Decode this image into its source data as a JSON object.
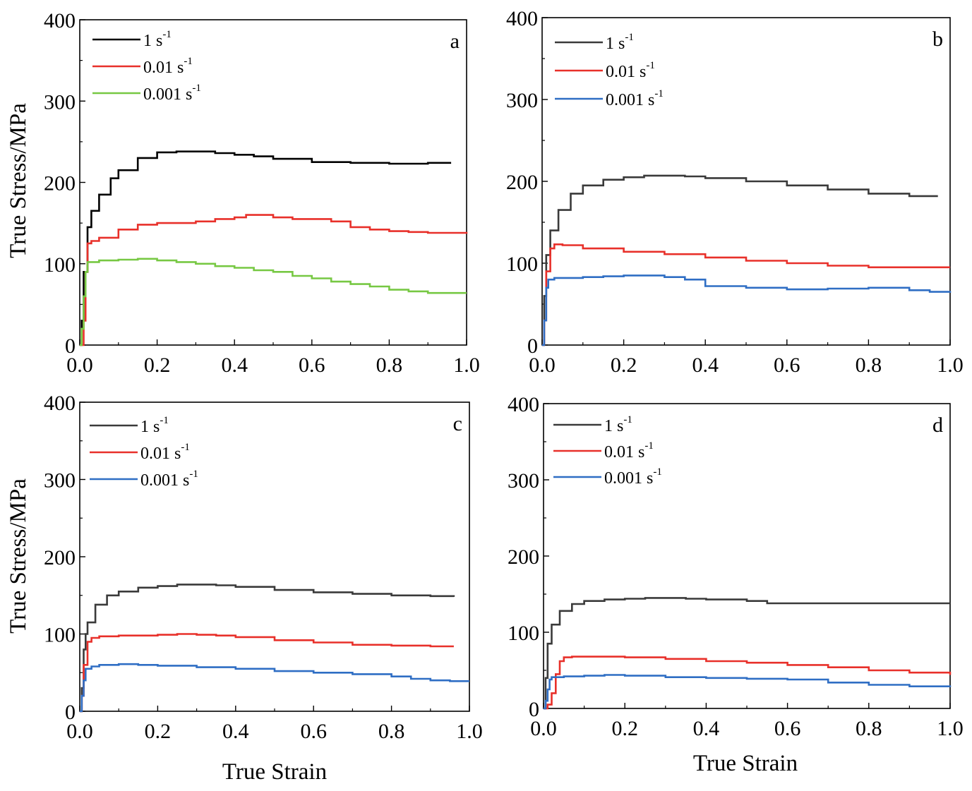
{
  "figure": {
    "ylabel_left": "True Stress/MPa",
    "xlabel_bottom": "True Strain"
  },
  "chart_data": [
    {
      "type": "line",
      "panel": "a",
      "xlabel": "",
      "ylabel": "True Stress/MPa",
      "xlim": [
        0.0,
        1.0
      ],
      "ylim": [
        0,
        400
      ],
      "xticks": [
        "0.0",
        "0.2",
        "0.4",
        "0.6",
        "0.8",
        "1.0"
      ],
      "yticks": [
        "0",
        "100",
        "200",
        "300",
        "400"
      ],
      "legend_position": "top-left",
      "series": [
        {
          "name": "1 s",
          "sup": "-1",
          "color": "#000000",
          "x": [
            0,
            0.005,
            0.01,
            0.02,
            0.03,
            0.05,
            0.08,
            0.1,
            0.15,
            0.2,
            0.25,
            0.3,
            0.35,
            0.4,
            0.45,
            0.5,
            0.6,
            0.7,
            0.8,
            0.9,
            0.96
          ],
          "y": [
            0,
            30,
            90,
            145,
            165,
            185,
            205,
            215,
            230,
            237,
            238,
            238,
            236,
            234,
            232,
            229,
            225,
            224,
            223,
            224,
            224
          ]
        },
        {
          "name": "0.01 s",
          "sup": "-1",
          "color": "#e8302a",
          "x": [
            0,
            0.01,
            0.015,
            0.02,
            0.03,
            0.05,
            0.1,
            0.15,
            0.2,
            0.3,
            0.35,
            0.4,
            0.43,
            0.45,
            0.5,
            0.55,
            0.6,
            0.65,
            0.7,
            0.75,
            0.8,
            0.85,
            0.9,
            0.95,
            1.0
          ],
          "y": [
            0,
            30,
            90,
            125,
            128,
            132,
            142,
            148,
            150,
            152,
            155,
            157,
            160,
            160,
            157,
            155,
            155,
            152,
            145,
            142,
            140,
            139,
            138,
            138,
            139
          ]
        },
        {
          "name": "0.001 s",
          "sup": "-1",
          "color": "#77c843",
          "x": [
            0,
            0.005,
            0.01,
            0.015,
            0.02,
            0.05,
            0.1,
            0.15,
            0.2,
            0.25,
            0.3,
            0.35,
            0.4,
            0.45,
            0.5,
            0.55,
            0.6,
            0.65,
            0.7,
            0.75,
            0.8,
            0.85,
            0.9,
            0.95,
            1.0
          ],
          "y": [
            0,
            20,
            60,
            90,
            102,
            104,
            105,
            106,
            104,
            102,
            100,
            97,
            95,
            92,
            90,
            85,
            82,
            78,
            75,
            72,
            68,
            66,
            64,
            64,
            64
          ]
        }
      ]
    },
    {
      "type": "line",
      "panel": "b",
      "xlabel": "",
      "ylabel": "",
      "xlim": [
        0.0,
        1.0
      ],
      "ylim": [
        0,
        400
      ],
      "xticks": [
        "0.0",
        "0.2",
        "0.4",
        "0.6",
        "0.8",
        "1.0"
      ],
      "yticks": [
        "0",
        "100",
        "200",
        "300",
        "400"
      ],
      "legend_position": "top-left",
      "series": [
        {
          "name": "1 s",
          "sup": "-1",
          "color": "#3a3a3a",
          "x": [
            0,
            0.005,
            0.01,
            0.02,
            0.04,
            0.07,
            0.1,
            0.15,
            0.2,
            0.25,
            0.3,
            0.35,
            0.4,
            0.5,
            0.6,
            0.7,
            0.8,
            0.9,
            0.97
          ],
          "y": [
            0,
            60,
            110,
            140,
            165,
            185,
            195,
            202,
            205,
            207,
            207,
            206,
            204,
            200,
            195,
            190,
            185,
            182,
            182
          ]
        },
        {
          "name": "0.01 s",
          "sup": "-1",
          "color": "#e8302a",
          "x": [
            0,
            0.005,
            0.01,
            0.02,
            0.03,
            0.05,
            0.1,
            0.2,
            0.3,
            0.4,
            0.5,
            0.6,
            0.7,
            0.8,
            0.9,
            1.0
          ],
          "y": [
            0,
            30,
            90,
            118,
            123,
            122,
            118,
            114,
            111,
            107,
            103,
            100,
            97,
            95,
            95,
            95
          ]
        },
        {
          "name": "0.001 s",
          "sup": "-1",
          "color": "#2f6ec4",
          "x": [
            0,
            0.005,
            0.01,
            0.015,
            0.03,
            0.1,
            0.15,
            0.2,
            0.25,
            0.3,
            0.35,
            0.4,
            0.5,
            0.6,
            0.7,
            0.8,
            0.9,
            0.95,
            1.0
          ],
          "y": [
            0,
            30,
            70,
            80,
            82,
            83,
            84,
            85,
            85,
            83,
            80,
            72,
            70,
            68,
            69,
            70,
            67,
            65,
            66
          ]
        }
      ]
    },
    {
      "type": "line",
      "panel": "c",
      "xlabel": "True Strain",
      "ylabel": "True Stress/MPa",
      "xlim": [
        0.0,
        1.0
      ],
      "ylim": [
        0,
        400
      ],
      "xticks": [
        "0.0",
        "0.2",
        "0.4",
        "0.6",
        "0.8",
        "1.0"
      ],
      "yticks": [
        "0",
        "100",
        "200",
        "300",
        "400"
      ],
      "legend_position": "top-left",
      "series": [
        {
          "name": "1 s",
          "sup": "-1",
          "color": "#3a3a3a",
          "x": [
            0,
            0.005,
            0.01,
            0.015,
            0.02,
            0.04,
            0.07,
            0.1,
            0.15,
            0.2,
            0.25,
            0.3,
            0.35,
            0.4,
            0.5,
            0.6,
            0.7,
            0.8,
            0.9,
            0.96
          ],
          "y": [
            0,
            30,
            80,
            100,
            115,
            138,
            150,
            155,
            160,
            162,
            164,
            164,
            163,
            161,
            157,
            154,
            152,
            150,
            149,
            148
          ]
        },
        {
          "name": "0.01 s",
          "sup": "-1",
          "color": "#e8302a",
          "x": [
            0,
            0.005,
            0.01,
            0.02,
            0.03,
            0.05,
            0.1,
            0.2,
            0.25,
            0.3,
            0.35,
            0.4,
            0.5,
            0.6,
            0.7,
            0.8,
            0.9,
            0.96
          ],
          "y": [
            0,
            20,
            60,
            90,
            95,
            97,
            98,
            99,
            100,
            99,
            98,
            96,
            92,
            89,
            86,
            85,
            84,
            84
          ]
        },
        {
          "name": "0.001 s",
          "sup": "-1",
          "color": "#2f6ec4",
          "x": [
            0,
            0.005,
            0.01,
            0.015,
            0.03,
            0.05,
            0.1,
            0.15,
            0.2,
            0.3,
            0.4,
            0.5,
            0.6,
            0.7,
            0.8,
            0.85,
            0.9,
            0.95,
            1.0
          ],
          "y": [
            0,
            20,
            40,
            55,
            58,
            60,
            61,
            60,
            59,
            57,
            55,
            52,
            50,
            48,
            45,
            42,
            40,
            39,
            39
          ]
        }
      ]
    },
    {
      "type": "line",
      "panel": "d",
      "xlabel": "True Strain",
      "ylabel": "",
      "xlim": [
        0.0,
        1.0
      ],
      "ylim": [
        0,
        400
      ],
      "xticks": [
        "0.0",
        "0.2",
        "0.4",
        "0.6",
        "0.8",
        "1.0"
      ],
      "yticks": [
        "0",
        "100",
        "200",
        "300",
        "400"
      ],
      "legend_position": "top-left",
      "series": [
        {
          "name": "1 s",
          "sup": "-1",
          "color": "#3a3a3a",
          "x": [
            0,
            0.005,
            0.01,
            0.02,
            0.04,
            0.07,
            0.1,
            0.15,
            0.2,
            0.25,
            0.3,
            0.35,
            0.4,
            0.5,
            0.55,
            0.6,
            0.7,
            0.8,
            0.9,
            1.0
          ],
          "y": [
            0,
            40,
            85,
            110,
            128,
            137,
            141,
            143,
            144,
            145,
            145,
            144,
            143,
            141,
            138,
            138,
            138,
            138,
            138,
            138
          ]
        },
        {
          "name": "0.01 s",
          "sup": "-1",
          "color": "#e8302a",
          "x": [
            0,
            0.01,
            0.02,
            0.03,
            0.04,
            0.05,
            0.07,
            0.1,
            0.2,
            0.3,
            0.4,
            0.5,
            0.6,
            0.7,
            0.8,
            0.9,
            1.0
          ],
          "y": [
            0,
            5,
            20,
            45,
            62,
            67,
            68,
            68,
            67,
            65,
            62,
            60,
            57,
            54,
            50,
            47,
            44
          ]
        },
        {
          "name": "0.001 s",
          "sup": "-1",
          "color": "#2f6ec4",
          "x": [
            0,
            0.005,
            0.01,
            0.015,
            0.02,
            0.05,
            0.1,
            0.15,
            0.2,
            0.3,
            0.4,
            0.5,
            0.6,
            0.7,
            0.8,
            0.9,
            1.0
          ],
          "y": [
            0,
            10,
            25,
            38,
            41,
            42,
            43,
            44,
            43,
            41,
            40,
            39,
            38,
            34,
            31,
            29,
            28
          ]
        }
      ]
    }
  ]
}
